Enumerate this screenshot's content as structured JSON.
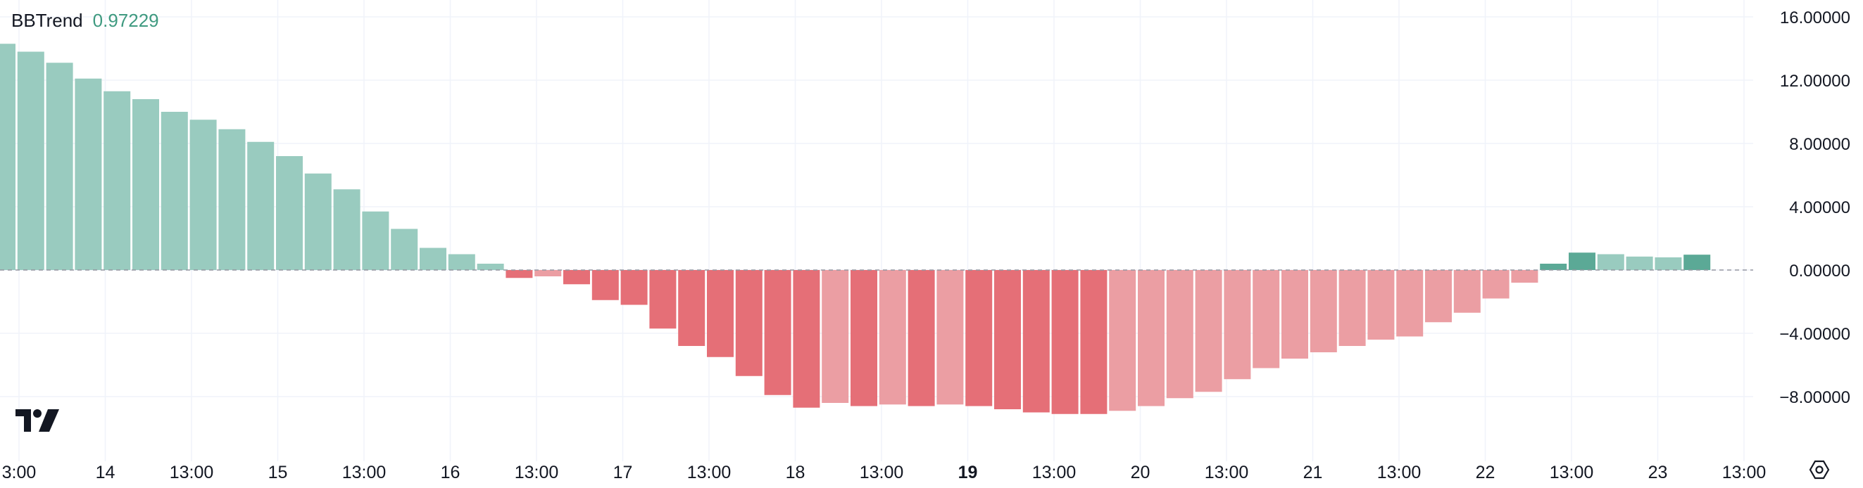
{
  "indicator": {
    "name": "BBTrend",
    "value": "0.97229",
    "value_color": "#3f9a80"
  },
  "colors": {
    "up_strong": "#5ba996",
    "up_weak": "#99cbbf",
    "down_strong": "#e56f77",
    "down_weak": "#eb9ea3",
    "grid": "#f0f3fa",
    "zero_line": "#9598a1"
  },
  "chart_data": {
    "type": "bar",
    "ylim": [
      -9.9,
      16.0
    ],
    "y_ticks": [
      {
        "value": 16,
        "label": "16.00000"
      },
      {
        "value": 12,
        "label": "12.00000"
      },
      {
        "value": 8,
        "label": "8.00000"
      },
      {
        "value": 4,
        "label": "4.00000"
      },
      {
        "value": 0,
        "label": "0.00000"
      },
      {
        "value": -4,
        "label": "−4.00000"
      },
      {
        "value": -8,
        "label": "−8.00000"
      }
    ],
    "x_ticks": [
      {
        "label": "3:00",
        "bold": false
      },
      {
        "label": "14",
        "bold": false
      },
      {
        "label": "13:00",
        "bold": false
      },
      {
        "label": "15",
        "bold": false
      },
      {
        "label": "13:00",
        "bold": false
      },
      {
        "label": "16",
        "bold": false
      },
      {
        "label": "13:00",
        "bold": false
      },
      {
        "label": "17",
        "bold": false
      },
      {
        "label": "13:00",
        "bold": false
      },
      {
        "label": "18",
        "bold": false
      },
      {
        "label": "13:00",
        "bold": false
      },
      {
        "label": "19",
        "bold": true
      },
      {
        "label": "13:00",
        "bold": false
      },
      {
        "label": "20",
        "bold": false
      },
      {
        "label": "13:00",
        "bold": false
      },
      {
        "label": "21",
        "bold": false
      },
      {
        "label": "13:00",
        "bold": false
      },
      {
        "label": "22",
        "bold": false
      },
      {
        "label": "13:00",
        "bold": false
      },
      {
        "label": "23",
        "bold": false
      },
      {
        "label": "13:00",
        "bold": false
      }
    ],
    "values": [
      14.3,
      13.8,
      13.1,
      12.1,
      11.3,
      10.8,
      10.0,
      9.5,
      8.9,
      8.1,
      7.2,
      6.1,
      5.1,
      3.7,
      2.6,
      1.4,
      1.0,
      0.4,
      -0.5,
      -0.4,
      -0.9,
      -1.9,
      -2.2,
      -3.7,
      -4.8,
      -5.5,
      -6.7,
      -7.9,
      -8.7,
      -8.4,
      -8.6,
      -8.5,
      -8.6,
      -8.5,
      -8.6,
      -8.8,
      -9.0,
      -9.1,
      -9.1,
      -8.9,
      -8.6,
      -8.1,
      -7.7,
      -6.9,
      -6.2,
      -5.6,
      -5.2,
      -4.8,
      -4.4,
      -4.2,
      -3.3,
      -2.7,
      -1.8,
      -0.8,
      0.4,
      1.1,
      1.0,
      0.85,
      0.8,
      0.97
    ],
    "shades": [
      "weak",
      "weak",
      "weak",
      "weak",
      "weak",
      "weak",
      "weak",
      "weak",
      "weak",
      "weak",
      "weak",
      "weak",
      "weak",
      "weak",
      "weak",
      "weak",
      "weak",
      "weak",
      "strong",
      "weak",
      "strong",
      "strong",
      "strong",
      "strong",
      "strong",
      "strong",
      "strong",
      "strong",
      "strong",
      "weak",
      "strong",
      "weak",
      "strong",
      "weak",
      "strong",
      "strong",
      "strong",
      "strong",
      "strong",
      "weak",
      "weak",
      "weak",
      "weak",
      "weak",
      "weak",
      "weak",
      "weak",
      "weak",
      "weak",
      "weak",
      "weak",
      "weak",
      "weak",
      "weak",
      "strong",
      "strong",
      "weak",
      "weak",
      "weak",
      "strong"
    ]
  }
}
